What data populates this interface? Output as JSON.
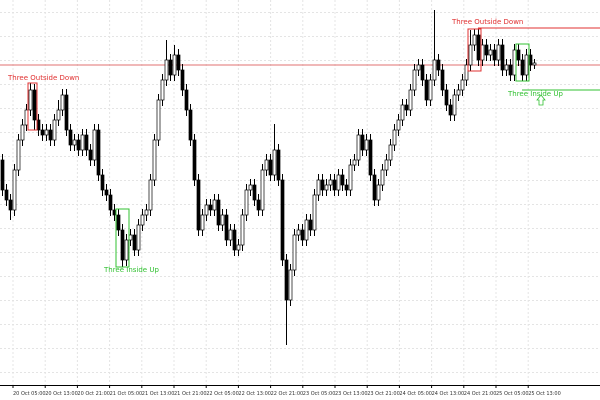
{
  "chart_data": {
    "type": "candlestick",
    "ylim": [
      0,
      385
    ],
    "up_color": "#ffffff",
    "down_color": "#000000",
    "open": [
      225,
      195,
      185,
      175,
      215,
      245,
      260,
      275,
      295,
      265,
      255,
      250,
      255,
      245,
      265,
      275,
      290,
      255,
      240,
      245,
      235,
      250,
      235,
      225,
      255,
      210,
      195,
      190,
      175,
      170,
      155,
      125,
      145,
      150,
      135,
      160,
      170,
      175,
      205,
      245,
      285,
      305,
      325,
      310,
      330,
      315,
      295,
      275,
      245,
      205,
      155,
      170,
      180,
      175,
      185,
      160,
      170,
      145,
      155,
      135,
      140,
      170,
      195,
      200,
      185,
      175,
      215,
      225,
      210,
      235,
      205,
      125,
      85,
      115,
      150,
      155,
      145,
      165,
      155,
      190,
      205,
      195,
      200,
      205,
      195,
      210,
      200,
      195,
      220,
      225,
      250,
      235,
      245,
      210,
      185,
      200,
      215,
      225,
      240,
      255,
      265,
      280,
      275,
      295,
      315,
      320,
      305,
      285,
      305,
      325,
      315,
      295,
      280,
      270,
      290,
      295,
      305,
      320,
      340,
      350,
      325,
      340,
      330,
      335,
      325,
      340,
      315,
      320,
      310,
      335,
      325,
      310,
      330,
      320
    ],
    "close": [
      195,
      185,
      175,
      215,
      245,
      260,
      275,
      295,
      265,
      255,
      250,
      255,
      245,
      265,
      275,
      290,
      255,
      240,
      245,
      235,
      250,
      235,
      225,
      255,
      210,
      195,
      190,
      175,
      170,
      155,
      125,
      145,
      150,
      135,
      160,
      170,
      175,
      205,
      245,
      285,
      305,
      325,
      310,
      330,
      315,
      295,
      275,
      245,
      205,
      155,
      170,
      180,
      175,
      185,
      160,
      170,
      145,
      155,
      135,
      140,
      170,
      195,
      200,
      185,
      175,
      215,
      225,
      210,
      235,
      205,
      125,
      85,
      115,
      150,
      155,
      145,
      165,
      155,
      190,
      205,
      195,
      200,
      205,
      195,
      210,
      200,
      195,
      220,
      225,
      250,
      235,
      245,
      210,
      185,
      200,
      215,
      225,
      240,
      255,
      265,
      280,
      275,
      295,
      315,
      320,
      305,
      285,
      305,
      325,
      315,
      295,
      280,
      270,
      290,
      295,
      305,
      320,
      340,
      350,
      325,
      340,
      330,
      335,
      325,
      340,
      315,
      320,
      310,
      335,
      325,
      310,
      330,
      320,
      322
    ],
    "high": [
      231,
      201,
      191,
      221,
      251,
      266,
      281,
      302,
      301,
      271,
      261,
      261,
      261,
      271,
      285,
      296,
      296,
      261,
      251,
      251,
      256,
      256,
      241,
      261,
      261,
      216,
      201,
      196,
      181,
      176,
      161,
      151,
      156,
      156,
      166,
      176,
      181,
      211,
      251,
      291,
      311,
      345,
      331,
      340,
      336,
      321,
      301,
      281,
      251,
      211,
      176,
      186,
      186,
      191,
      191,
      176,
      176,
      161,
      161,
      146,
      176,
      201,
      206,
      206,
      191,
      221,
      231,
      231,
      261,
      241,
      211,
      131,
      121,
      156,
      161,
      161,
      171,
      171,
      196,
      211,
      211,
      206,
      211,
      211,
      216,
      216,
      206,
      226,
      231,
      256,
      256,
      251,
      251,
      216,
      206,
      221,
      231,
      246,
      261,
      271,
      286,
      286,
      301,
      321,
      326,
      326,
      311,
      311,
      375,
      331,
      321,
      301,
      286,
      296,
      301,
      311,
      326,
      355,
      356,
      356,
      346,
      346,
      341,
      341,
      346,
      346,
      326,
      326,
      341,
      341,
      331,
      336,
      336,
      326
    ],
    "low": [
      189,
      179,
      165,
      169,
      209,
      239,
      254,
      269,
      255,
      249,
      244,
      244,
      239,
      239,
      259,
      269,
      249,
      234,
      234,
      229,
      229,
      229,
      219,
      219,
      204,
      189,
      184,
      169,
      164,
      149,
      118,
      119,
      139,
      129,
      129,
      154,
      164,
      169,
      199,
      239,
      279,
      299,
      304,
      304,
      309,
      289,
      269,
      239,
      199,
      149,
      149,
      164,
      169,
      169,
      154,
      154,
      139,
      139,
      129,
      129,
      134,
      164,
      189,
      179,
      169,
      169,
      209,
      204,
      204,
      199,
      119,
      40,
      79,
      109,
      144,
      139,
      139,
      149,
      149,
      184,
      189,
      189,
      194,
      189,
      189,
      194,
      189,
      189,
      214,
      219,
      229,
      229,
      204,
      179,
      179,
      194,
      209,
      219,
      234,
      249,
      259,
      269,
      269,
      289,
      309,
      299,
      279,
      279,
      299,
      309,
      289,
      274,
      264,
      264,
      284,
      289,
      299,
      314,
      334,
      319,
      319,
      324,
      324,
      319,
      319,
      309,
      309,
      304,
      304,
      319,
      304,
      304,
      314,
      316
    ],
    "x_labels": [
      "20 Oct 05:00",
      "20 Oct 13:00",
      "20 Oct 21:00",
      "21 Oct 05:00",
      "21 Oct 13:00",
      "21 Oct 21:00",
      "22 Oct 05:00",
      "22 Oct 13:00",
      "22 Oct 21:00",
      "23 Oct 05:00",
      "23 Oct 13:00",
      "23 Oct 21:00",
      "24 Oct 05:00",
      "24 Oct 13:00",
      "24 Oct 21:00",
      "25 Oct 05:00",
      "25 Oct 13:00"
    ],
    "levels": [
      {
        "value": 320,
        "color": "#e07070"
      },
      {
        "value": 357,
        "color": "#e03030"
      },
      {
        "value": 295,
        "color": "#30c030"
      }
    ],
    "annotations": [
      {
        "text": "Three Outside Down",
        "color": "#e03030"
      },
      {
        "text": "Three Inside Up",
        "color": "#30c030"
      },
      {
        "text": "Three Outside Down",
        "color": "#e03030"
      },
      {
        "text": "Three Inside Up",
        "color": "#30c030"
      }
    ]
  }
}
